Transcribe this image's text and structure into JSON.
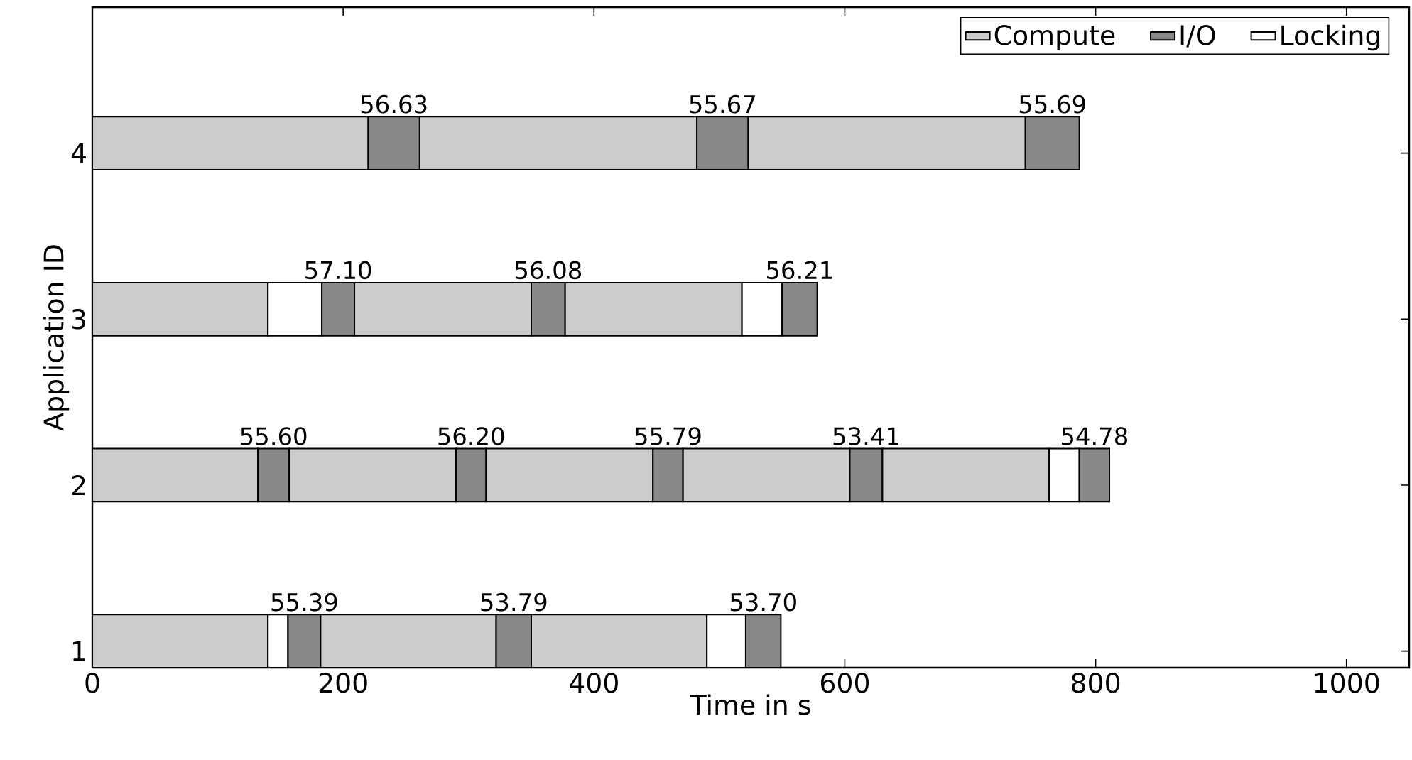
{
  "chart_data": {
    "type": "bar",
    "orientation": "horizontal",
    "stacked": true,
    "xlabel": "Time in s",
    "ylabel": "Application ID",
    "categories": [
      "4",
      "3",
      "2",
      "1"
    ],
    "xlim": [
      0,
      1050
    ],
    "xticks": [
      0,
      200,
      400,
      600,
      800,
      1000
    ],
    "legend": "top right",
    "series": [
      {
        "name": "Compute",
        "color": "#cccccc",
        "values": [
          220,
          140,
          132,
          140
        ]
      },
      {
        "color": "#ffffff",
        "values": [
          null,
          43,
          null,
          16
        ]
      },
      {
        "name": "I/O",
        "color": "#888888",
        "values": [
          41,
          26,
          25,
          26
        ]
      },
      {
        "color": "#cccccc",
        "values": [
          221,
          141,
          133,
          140
        ]
      },
      {
        "color": "#888888",
        "values": [
          41,
          27,
          24,
          28
        ]
      },
      {
        "color": "#cccccc",
        "values": [
          221,
          141,
          133,
          140
        ]
      },
      {
        "name": "Locking",
        "color": "#ffffff",
        "values": [
          null,
          32,
          null,
          31
        ]
      },
      {
        "color": "#888888",
        "values": [
          43,
          28,
          24,
          28
        ]
      },
      {
        "color": "#cccccc",
        "values": [
          null,
          null,
          133,
          null
        ]
      },
      {
        "color": "#888888",
        "values": [
          null,
          null,
          26,
          null
        ]
      },
      {
        "color": "#cccccc",
        "values": [
          null,
          null,
          133,
          null
        ]
      },
      {
        "color": "#ffffff",
        "values": [
          null,
          null,
          24,
          null
        ]
      },
      {
        "color": "#888888",
        "values": [
          null,
          null,
          24,
          null
        ]
      }
    ],
    "annotations": [
      "56.63",
      "55.67",
      "55.69",
      "57.10",
      "56.08",
      "56.21",
      "55.60",
      "56.20",
      "55.79",
      "53.41",
      "54.78",
      "55.39",
      "53.79",
      "53.70"
    ]
  }
}
